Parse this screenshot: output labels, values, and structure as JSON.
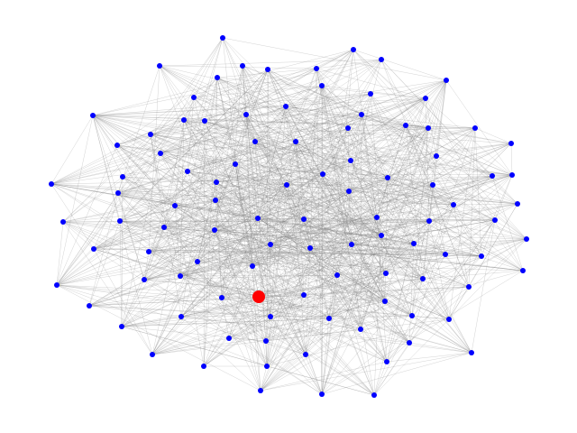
{
  "graph": {
    "node_color": "#0000ff",
    "highlight_color": "#ff0000",
    "edge_color": "#808080",
    "background": "#ffffff",
    "highlighted_node_count": 1
  }
}
